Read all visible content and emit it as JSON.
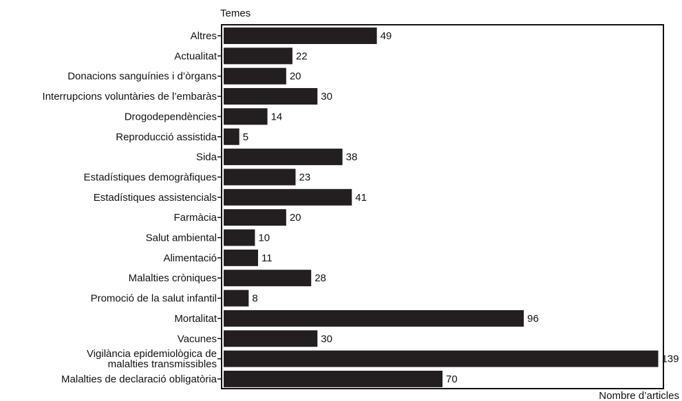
{
  "chart_data": {
    "type": "bar",
    "orientation": "horizontal",
    "ylabel": "Temes",
    "xlabel": "Nombre d’articles",
    "categories": [
      "Altres",
      "Actualitat",
      "Donacions sanguínies i d’òrgans",
      "Interrupcions voluntàries de l’embaràs",
      "Drogodependències",
      "Reproducció assistida",
      "Sida",
      "Estadístiques demogràfiques",
      "Estadístiques assistencials",
      "Farmàcia",
      "Salut ambiental",
      "Alimentació",
      "Malalties cròniques",
      "Promoció de la salut infantil",
      "Mortalitat",
      "Vacunes",
      "Vigilància epidemiològica de malalties transmissibles",
      "Malalties de declaració obligatòria"
    ],
    "category_label_lines": [
      [
        "Altres"
      ],
      [
        "Actualitat"
      ],
      [
        "Donacions sanguínies i d’òrgans"
      ],
      [
        "Interrupcions voluntàries de l’embaràs"
      ],
      [
        "Drogodependències"
      ],
      [
        "Reproducció assistida"
      ],
      [
        "Sida"
      ],
      [
        "Estadístiques demogràfiques"
      ],
      [
        "Estadístiques assistencials"
      ],
      [
        "Farmàcia"
      ],
      [
        "Salut ambiental"
      ],
      [
        "Alimentació"
      ],
      [
        "Malalties cròniques"
      ],
      [
        "Promoció de la salut infantil"
      ],
      [
        "Mortalitat"
      ],
      [
        "Vacunes"
      ],
      [
        "Vigilància epidemiològica de",
        "malalties transmissibles"
      ],
      [
        "Malalties de declaració obligatòria"
      ]
    ],
    "values": [
      49,
      22,
      20,
      30,
      14,
      5,
      38,
      23,
      41,
      20,
      10,
      11,
      28,
      8,
      96,
      30,
      139,
      70
    ],
    "value_labels": [
      "49",
      "22",
      "20",
      "30",
      "14",
      "5",
      "38",
      "23",
      "41",
      "20",
      "10",
      "11",
      "28",
      "8",
      "96",
      "30",
      "139",
      "70"
    ],
    "xlim": [
      0,
      140
    ],
    "bar_color": "#231f20",
    "grid": false,
    "legend": "none"
  }
}
